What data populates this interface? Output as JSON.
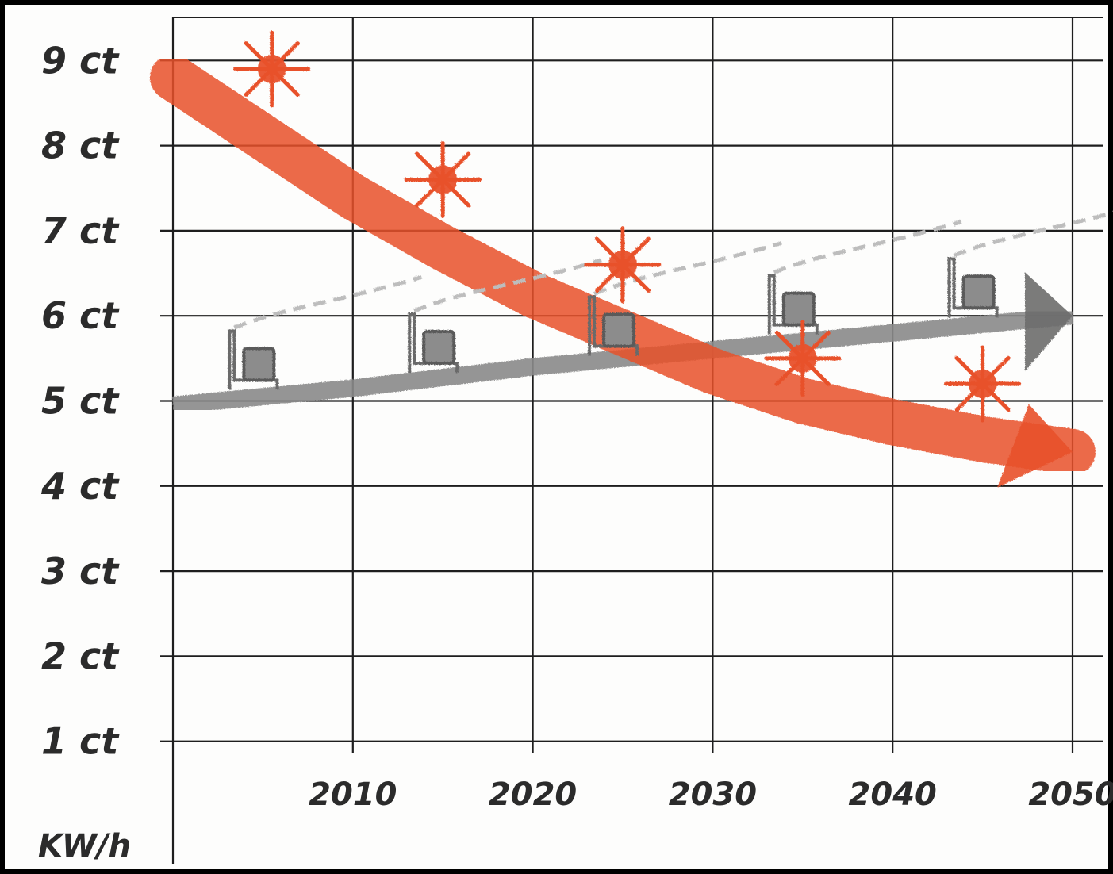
{
  "chart_data": {
    "type": "line",
    "title": "",
    "xlabel": "",
    "ylabel": "KW/h",
    "x_ticks": [
      "2010",
      "2020",
      "2030",
      "2040",
      "2050"
    ],
    "y_ticks": [
      "1 ct",
      "2 ct",
      "3 ct",
      "4 ct",
      "5 ct",
      "6 ct",
      "7 ct",
      "8 ct",
      "9 ct"
    ],
    "xlim": [
      2000,
      2050
    ],
    "ylim": [
      0,
      9
    ],
    "grid": true,
    "legend": "none",
    "series": [
      {
        "color": "#e8512a",
        "icon": "sun-icon",
        "x": [
          2000,
          2005,
          2010,
          2015,
          2020,
          2025,
          2030,
          2035,
          2040,
          2045,
          2050
        ],
        "y": [
          8.8,
          8.1,
          7.4,
          6.8,
          6.25,
          5.8,
          5.35,
          5.0,
          4.75,
          4.55,
          4.4
        ]
      },
      {
        "color": "#8a8a8a",
        "icon": "factory-icon",
        "x": [
          2000,
          2010,
          2020,
          2030,
          2040,
          2050
        ],
        "y": [
          4.95,
          5.15,
          5.4,
          5.6,
          5.8,
          6.0
        ]
      }
    ],
    "sun_markers": [
      {
        "x": 2005.5,
        "y": 8.9
      },
      {
        "x": 2015,
        "y": 7.6
      },
      {
        "x": 2025,
        "y": 6.6
      },
      {
        "x": 2035,
        "y": 5.5
      },
      {
        "x": 2045,
        "y": 5.2
      }
    ],
    "factory_markers": [
      {
        "x": 2005,
        "y": 5.15
      },
      {
        "x": 2015,
        "y": 5.35
      },
      {
        "x": 2025,
        "y": 5.55
      },
      {
        "x": 2035,
        "y": 5.8
      },
      {
        "x": 2045,
        "y": 6.0
      }
    ]
  }
}
